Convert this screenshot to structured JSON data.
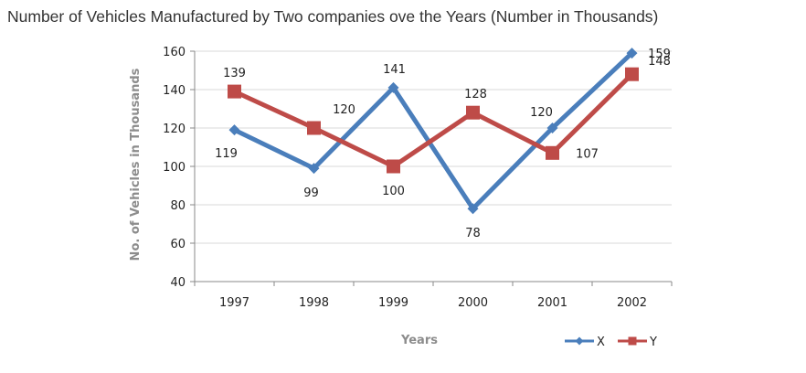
{
  "chart_data": {
    "type": "line",
    "title": "Number of Vehicles Manufactured by Two companies ove the Years (Number in Thousands)",
    "xlabel": "Years",
    "ylabel": "No. of Vehicles in Thousands",
    "categories": [
      "1997",
      "1998",
      "1999",
      "2000",
      "2001",
      "2002"
    ],
    "ylim": [
      40,
      160
    ],
    "yticks": [
      "40",
      "60",
      "80",
      "100",
      "120",
      "140",
      "160"
    ],
    "grid": true,
    "legend": "bottom-right",
    "series": [
      {
        "name": "X",
        "color": "#4a7ebb",
        "marker": "diamond",
        "values": [
          119,
          99,
          141,
          78,
          120,
          159
        ]
      },
      {
        "name": "Y",
        "color": "#be4b48",
        "marker": "square",
        "values": [
          139,
          120,
          100,
          128,
          107,
          148
        ]
      }
    ]
  }
}
